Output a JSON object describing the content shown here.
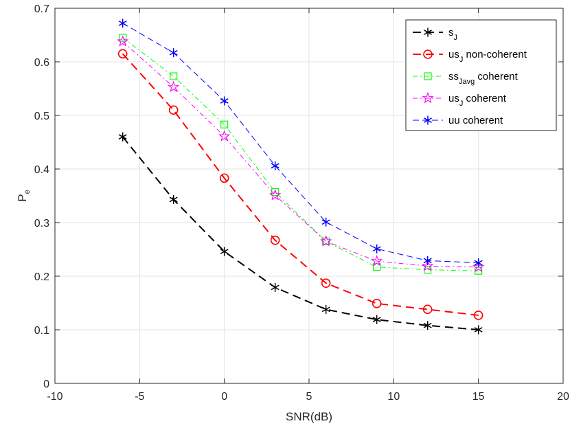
{
  "chart_data": {
    "type": "line",
    "title": "",
    "xlabel": "SNR(dB)",
    "ylabel": {
      "main": "P",
      "sub": "e"
    },
    "xlim": [
      -10,
      20
    ],
    "ylim": [
      0,
      0.7
    ],
    "xticks": [
      -10,
      -5,
      0,
      5,
      10,
      15,
      20
    ],
    "xtick_labels": [
      "-10",
      "-5",
      "0",
      "5",
      "10",
      "15",
      "20"
    ],
    "yticks": [
      0,
      0.1,
      0.2,
      0.3,
      0.4,
      0.5,
      0.6,
      0.7
    ],
    "ytick_labels": [
      "0",
      "0.1",
      "0.2",
      "0.3",
      "0.4",
      "0.5",
      "0.6",
      "0.7"
    ],
    "grid": true,
    "legend_position": "top-right",
    "x": [
      -6,
      -3,
      0,
      3,
      6,
      9,
      12,
      15
    ],
    "series": [
      {
        "name": "s_J",
        "legend": {
          "main": "s",
          "sub": "J",
          "rest": ""
        },
        "values": [
          0.46,
          0.343,
          0.246,
          0.179,
          0.138,
          0.119,
          0.108,
          0.1
        ],
        "color": "#000000",
        "marker": "asterisk",
        "dash": "long"
      },
      {
        "name": "us_J non-coherent",
        "legend": {
          "main": "us",
          "sub": "J",
          "rest": " non-coherent"
        },
        "values": [
          0.615,
          0.51,
          0.383,
          0.267,
          0.187,
          0.149,
          0.138,
          0.127
        ],
        "color": "#ff0000",
        "marker": "circle",
        "dash": "long"
      },
      {
        "name": "ss_Javg coherent",
        "legend": {
          "main": "ss",
          "sub": "Javg",
          "rest": " coherent"
        },
        "values": [
          0.645,
          0.573,
          0.483,
          0.357,
          0.265,
          0.217,
          0.212,
          0.21
        ],
        "color": "#00ff00",
        "marker": "square",
        "dash": "dashdot"
      },
      {
        "name": "us_J coherent",
        "legend": {
          "main": "us",
          "sub": "J",
          "rest": " coherent"
        },
        "values": [
          0.638,
          0.553,
          0.461,
          0.351,
          0.265,
          0.228,
          0.219,
          0.217
        ],
        "color": "#ff00ff",
        "marker": "pentagram",
        "dash": "dashdot"
      },
      {
        "name": "uu coherent",
        "legend": {
          "main": "uu coherent",
          "sub": "",
          "rest": ""
        },
        "values": [
          0.672,
          0.617,
          0.527,
          0.406,
          0.301,
          0.251,
          0.229,
          0.225
        ],
        "color": "#0000ff",
        "marker": "asterisk",
        "dash": "short"
      }
    ]
  }
}
